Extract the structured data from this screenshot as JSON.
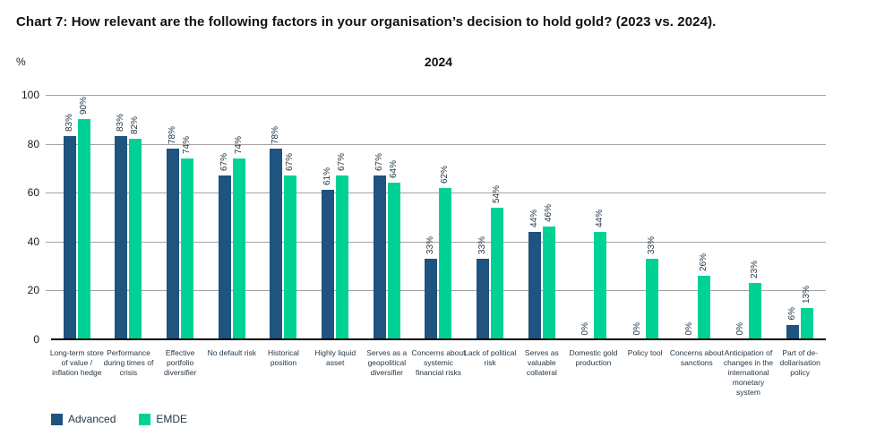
{
  "page": {
    "title": "Chart 7: How relevant are the following factors in your organisation’s decision to hold gold? (2023 vs. 2024)."
  },
  "chart_data": {
    "type": "bar",
    "title": "2024",
    "xlabel": "",
    "ylabel": "%",
    "ylim": [
      0,
      100
    ],
    "yticks": [
      0,
      20,
      40,
      60,
      80,
      100
    ],
    "grid": true,
    "value_suffix": "%",
    "data_labels_rotated": true,
    "legend_position": "bottom-left",
    "categories": [
      "Long-term store of value / inflation hedge",
      "Performance during times of crisis",
      "Effective portfolio diversifier",
      "No default risk",
      "Historical position",
      "Highly liquid asset",
      "Serves as a geopolitical diversifier",
      "Concerns about systemic financial risks",
      "Lack of political risk",
      "Serves as valuable collateral",
      "Domestic gold production",
      "Policy tool",
      "Concerns about sanctions",
      "Anticipation of changes in the international monetary system",
      "Part of de-dollarisation policy"
    ],
    "series": [
      {
        "name": "Advanced",
        "color": "#1F5380",
        "values": [
          83,
          83,
          78,
          67,
          78,
          61,
          67,
          33,
          33,
          44,
          0,
          0,
          0,
          0,
          6
        ]
      },
      {
        "name": "EMDE",
        "color": "#00D296",
        "values": [
          90,
          82,
          74,
          74,
          67,
          67,
          64,
          62,
          54,
          46,
          44,
          33,
          26,
          23,
          13
        ]
      }
    ]
  },
  "legend": [
    {
      "label": "Advanced",
      "color": "#1F5380"
    },
    {
      "label": "EMDE",
      "color": "#00D296"
    }
  ]
}
